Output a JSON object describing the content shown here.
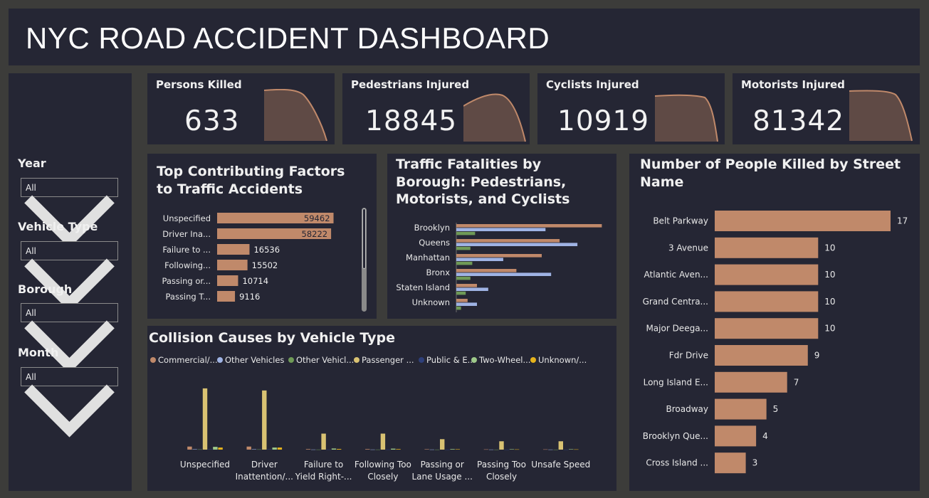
{
  "header": {
    "title": "NYC ROAD ACCIDENT DASHBOARD"
  },
  "filters": [
    {
      "label": "Year",
      "value": "All"
    },
    {
      "label": "Vehicle Type",
      "value": "All"
    },
    {
      "label": "Borough",
      "value": "All"
    },
    {
      "label": "Month",
      "value": "All"
    }
  ],
  "kpis": [
    {
      "label": "Persons Killed",
      "value": "633"
    },
    {
      "label": "Pedestrians Injured",
      "value": "18845"
    },
    {
      "label": "Cyclists Injured",
      "value": "10919"
    },
    {
      "label": "Motorists Injured",
      "value": "81342"
    }
  ],
  "colors": {
    "bar": "#c0896a",
    "kpi_fill": "#5f4a45",
    "kpi_line": "#c0896a",
    "pedestrians": "#c0896a",
    "motorists": "#9fb3e4",
    "cyclists": "#6f9a57",
    "panel_bg": "#252634",
    "page_bg": "#3c3c3a"
  },
  "chart_data": [
    {
      "id": "factors",
      "type": "bar",
      "orientation": "horizontal",
      "title": "Top Contributing Factors to Traffic Accidents",
      "categories": [
        "Unspecified",
        "Driver Ina...",
        "Failure to ...",
        "Following...",
        "Passing or...",
        "Passing T..."
      ],
      "values": [
        59462,
        58222,
        16536,
        15502,
        10714,
        9116
      ],
      "data_labels": [
        "59462",
        "58222",
        "16536",
        "15502",
        "10714",
        "9116"
      ],
      "xlim": [
        0,
        60000
      ],
      "grid": false,
      "scrollable": true
    },
    {
      "id": "boroughs",
      "type": "bar",
      "orientation": "horizontal",
      "title": "Traffic Fatalities by Borough: Pedestrians, Motorists, and Cyclists",
      "categories": [
        "Brooklyn",
        "Queens",
        "Manhattan",
        "Bronx",
        "Staten Island",
        "Unknown"
      ],
      "series": [
        {
          "values": [
            155,
            110,
            91,
            64,
            22,
            12
          ]
        },
        {
          "values": [
            95,
            129,
            50,
            101,
            34,
            22
          ]
        },
        {
          "values": [
            20,
            15,
            17,
            15,
            10,
            5
          ]
        }
      ],
      "xlim": [
        0,
        160
      ],
      "grid": false,
      "legend": "none"
    },
    {
      "id": "streets",
      "type": "bar",
      "orientation": "horizontal",
      "title": "Number of People Killed by Street Name",
      "categories": [
        "Belt Parkway",
        "3 Avenue",
        "Atlantic Aven...",
        "Grand Centra...",
        "Major Deega...",
        "Fdr Drive",
        "Long Island E...",
        "Broadway",
        "Brooklyn Que...",
        "Cross Island ..."
      ],
      "values": [
        17,
        10,
        10,
        10,
        10,
        9,
        7,
        5,
        4,
        3
      ],
      "data_labels": [
        "17",
        "10",
        "10",
        "10",
        "10",
        "9",
        "7",
        "5",
        "4",
        "3"
      ],
      "xlim": [
        0,
        17
      ],
      "grid": false
    },
    {
      "id": "vehicles",
      "type": "bar",
      "orientation": "vertical",
      "title": "Collision Causes by Vehicle Type",
      "categories": [
        "Unspecified",
        "Driver Inattention/...",
        "Failure to Yield Right-...",
        "Following Too Closely",
        "Passing or Lane Usage ...",
        "Passing Too Closely",
        "Unsafe Speed"
      ],
      "category_lines": [
        [
          "Unspecified"
        ],
        [
          "Driver",
          "Inattention/..."
        ],
        [
          "Failure to",
          "Yield Right-..."
        ],
        [
          "Following Too",
          "Closely"
        ],
        [
          "Passing or",
          "Lane Usage ..."
        ],
        [
          "Passing Too",
          "Closely"
        ],
        [
          "Unsafe Speed"
        ]
      ],
      "legend": "top",
      "series": [
        {
          "name": "Commercial/...",
          "color": "#c0896a",
          "values": [
            2200,
            2200,
            400,
            400,
            300,
            200,
            200
          ]
        },
        {
          "name": "Other Vehicles",
          "color": "#9fb3e4",
          "values": [
            300,
            300,
            100,
            100,
            100,
            80,
            80
          ]
        },
        {
          "name": "Other Vehicl...",
          "color": "#6f9a57",
          "values": [
            200,
            200,
            80,
            80,
            60,
            50,
            50
          ]
        },
        {
          "name": "Passenger ...",
          "color": "#d9c272",
          "values": [
            44000,
            42500,
            11500,
            11500,
            7500,
            6000,
            6000
          ]
        },
        {
          "name": "Public & E...",
          "color": "#2e3f7a",
          "values": [
            300,
            300,
            100,
            100,
            80,
            60,
            60
          ]
        },
        {
          "name": "Two-Wheel...",
          "color": "#9ec98a",
          "values": [
            2000,
            1500,
            800,
            700,
            400,
            300,
            300
          ]
        },
        {
          "name": "Unknown/...",
          "color": "#e6b31c",
          "values": [
            1500,
            1500,
            500,
            400,
            300,
            200,
            200
          ]
        }
      ],
      "ylim": [
        0,
        46000
      ],
      "grid": false
    }
  ]
}
